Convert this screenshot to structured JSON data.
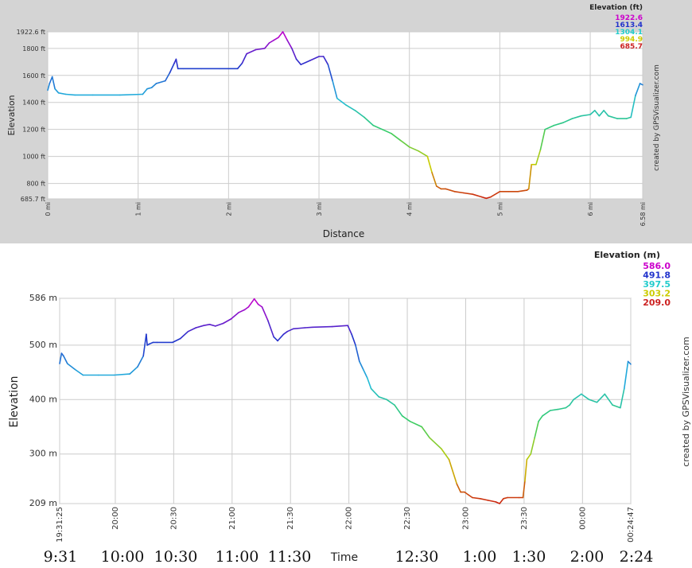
{
  "colors": {
    "panel_top": "#d4d4d4",
    "panel_bottom": "#ffffff",
    "grid": "#cccccc",
    "legend_colors": [
      "#cc00cc",
      "#2233cc",
      "#22cccc",
      "#cccc00",
      "#cc2222"
    ]
  },
  "chart_data": [
    {
      "type": "line",
      "xlabel": "Distance",
      "ylabel": "Elevation",
      "x_ticks": [
        "0 mi",
        "1 mi",
        "2 mi",
        "3 mi",
        "4 mi",
        "5 mi",
        "6 mi",
        "6.58 mi"
      ],
      "x_tick_values": [
        0,
        1,
        2,
        3,
        4,
        5,
        6,
        6.58
      ],
      "y_ticks": [
        "685.7 ft",
        "800 ft",
        "1000 ft",
        "1200 ft",
        "1400 ft",
        "1600 ft",
        "1800 ft",
        "1922.6 ft"
      ],
      "y_tick_values": [
        685.7,
        800,
        1000,
        1200,
        1400,
        1600,
        1800,
        1922.6
      ],
      "xlim": [
        0,
        6.58
      ],
      "ylim": [
        685.7,
        1922.6
      ],
      "grid": true,
      "legend_title": "Elevation (ft)",
      "legend_values": [
        "1922.6",
        "1613.4",
        "1304.1",
        "994.9",
        "685.7"
      ],
      "credit": "created by GPSVisualizer.com",
      "x": [
        0,
        0.02,
        0.05,
        0.08,
        0.12,
        0.2,
        0.3,
        0.5,
        0.8,
        1.05,
        1.1,
        1.15,
        1.2,
        1.3,
        1.35,
        1.4,
        1.42,
        1.44,
        1.5,
        1.7,
        1.9,
        2.1,
        2.15,
        2.2,
        2.3,
        2.4,
        2.45,
        2.5,
        2.55,
        2.6,
        2.65,
        2.7,
        2.75,
        2.8,
        2.9,
        3.0,
        3.05,
        3.1,
        3.15,
        3.2,
        3.3,
        3.4,
        3.5,
        3.6,
        3.7,
        3.8,
        3.9,
        4.0,
        4.1,
        4.2,
        4.25,
        4.3,
        4.35,
        4.4,
        4.5,
        4.6,
        4.7,
        4.8,
        4.85,
        4.9,
        5.0,
        5.1,
        5.2,
        5.3,
        5.32,
        5.35,
        5.4,
        5.45,
        5.5,
        5.6,
        5.7,
        5.8,
        5.9,
        6.0,
        6.05,
        6.1,
        6.15,
        6.2,
        6.3,
        6.4,
        6.45,
        6.5,
        6.55,
        6.58
      ],
      "y": [
        1490,
        1540,
        1590,
        1500,
        1470,
        1460,
        1455,
        1455,
        1455,
        1460,
        1500,
        1510,
        1540,
        1560,
        1620,
        1690,
        1720,
        1650,
        1650,
        1650,
        1650,
        1650,
        1690,
        1760,
        1790,
        1800,
        1840,
        1860,
        1880,
        1922.6,
        1860,
        1800,
        1720,
        1680,
        1710,
        1740,
        1740,
        1680,
        1560,
        1430,
        1380,
        1340,
        1290,
        1230,
        1200,
        1170,
        1120,
        1070,
        1040,
        1000,
        880,
        780,
        760,
        760,
        740,
        730,
        720,
        700,
        690,
        700,
        740,
        740,
        740,
        750,
        760,
        940,
        940,
        1050,
        1200,
        1230,
        1250,
        1280,
        1300,
        1310,
        1340,
        1300,
        1340,
        1300,
        1280,
        1280,
        1290,
        1450,
        1540,
        1530
      ]
    },
    {
      "type": "line",
      "xlabel": "Time",
      "ylabel": "Elevation",
      "x_ticks": [
        "19:31:25",
        "20:00",
        "20:30",
        "21:00",
        "21:30",
        "22:00",
        "22:30",
        "23:00",
        "23:30",
        "00:00",
        "00:24:47"
      ],
      "x_tick_values": [
        0,
        28.58,
        58.58,
        88.58,
        118.58,
        148.58,
        178.58,
        208.58,
        238.58,
        268.58,
        293.37
      ],
      "y_ticks": [
        "209 m",
        "300 m",
        "400 m",
        "500 m",
        "586 m"
      ],
      "y_tick_values": [
        209,
        300,
        400,
        500,
        586
      ],
      "xlim": [
        0,
        293.37
      ],
      "ylim": [
        209,
        586
      ],
      "grid": true,
      "legend_title": "Elevation (m)",
      "legend_values": [
        "586.0",
        "491.8",
        "397.5",
        "303.2",
        "209.0"
      ],
      "credit": "created by GPSVisualizer.com",
      "handwritten_times": [
        "9:31",
        "10:00",
        "10:30",
        "11:00",
        "11:30",
        "12:30",
        "1:00",
        "1:30",
        "2:00",
        "2:24"
      ],
      "x": [
        0,
        1,
        2,
        4,
        8,
        12,
        20,
        28,
        36,
        40,
        43,
        44.5,
        45,
        46,
        48,
        50,
        58,
        62,
        66,
        70,
        74,
        77,
        80,
        84,
        88,
        92,
        95,
        97,
        100,
        102,
        104,
        107,
        110,
        112,
        115,
        117,
        120,
        126,
        130,
        140,
        148,
        150,
        152,
        154,
        156,
        158,
        160,
        164,
        168,
        172,
        176,
        180,
        186,
        190,
        196,
        200,
        204,
        206,
        208,
        210,
        212,
        216,
        220,
        224,
        226,
        228,
        230,
        236,
        238,
        239,
        240,
        242,
        244,
        246,
        248,
        252,
        256,
        260,
        262,
        264,
        266,
        268,
        270,
        272,
        276,
        280,
        284,
        288,
        290,
        292,
        293.37
      ],
      "y": [
        466,
        485,
        480,
        466,
        455,
        445,
        445,
        445,
        447,
        460,
        480,
        520,
        500,
        502,
        505,
        505,
        505,
        512,
        525,
        532,
        536,
        538,
        535,
        540,
        548,
        560,
        565,
        570,
        585,
        575,
        570,
        545,
        515,
        508,
        520,
        525,
        530,
        532,
        533,
        534,
        536,
        520,
        500,
        470,
        455,
        440,
        420,
        405,
        400,
        390,
        370,
        360,
        350,
        330,
        310,
        290,
        245,
        230,
        230,
        225,
        220,
        218,
        215,
        212,
        209,
        218,
        220,
        220,
        220,
        250,
        290,
        300,
        330,
        360,
        370,
        380,
        382,
        385,
        390,
        400,
        405,
        410,
        405,
        400,
        395,
        410,
        390,
        385,
        420,
        470,
        465
      ]
    }
  ]
}
